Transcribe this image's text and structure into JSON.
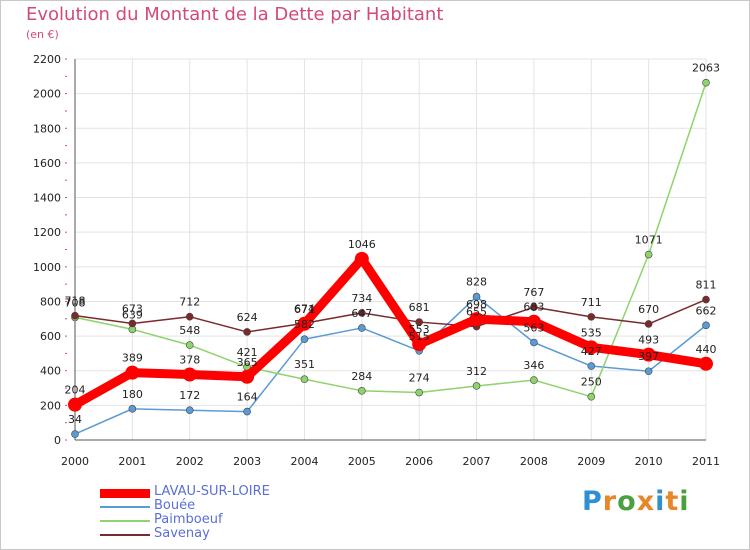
{
  "header": {
    "title": "Evolution du Montant de la Dette par Habitant",
    "subtitle": "(en €)"
  },
  "logo": {
    "letters": [
      "P",
      "r",
      "o",
      "x",
      "i",
      "t",
      "i"
    ],
    "colors": [
      "#2f8fd0",
      "#e8862a",
      "#4aa03f",
      "#e8862a",
      "#2f8fd0",
      "#e8862a",
      "#4aa03f"
    ]
  },
  "chart_data": {
    "type": "line",
    "title": "Evolution du Montant de la Dette par Habitant",
    "subtitle": "(en €)",
    "xlabel": "",
    "ylabel": "",
    "categories": [
      "2000",
      "2001",
      "2002",
      "2003",
      "2004",
      "2005",
      "2006",
      "2007",
      "2008",
      "2009",
      "2010",
      "2011"
    ],
    "ylim": [
      0,
      2200
    ],
    "yticks": [
      0,
      200,
      400,
      600,
      800,
      1000,
      1200,
      1400,
      1600,
      1800,
      2000,
      2200
    ],
    "grid": true,
    "legend": "bottom-left",
    "series": [
      {
        "name": "LAVAU-SUR-LOIRE",
        "color": "#ff0000",
        "values": [
          204,
          389,
          378,
          365,
          671,
          1046,
          553,
          698,
          683,
          535,
          493,
          440
        ],
        "labels": [
          "204",
          "389",
          "378",
          "365",
          "671",
          "1046",
          "553",
          "698",
          "683",
          "535",
          "493",
          "440"
        ],
        "emphasis": true
      },
      {
        "name": "Bouée",
        "color": "#5b9bd5",
        "values": [
          34,
          180,
          172,
          164,
          582,
          647,
          515,
          828,
          563,
          427,
          397,
          662
        ],
        "labels": [
          "34",
          "180",
          "172",
          "164",
          "582",
          "647",
          "515",
          "828",
          "563",
          "427",
          "397",
          "662"
        ]
      },
      {
        "name": "Paimboeuf",
        "color": "#8ed36b",
        "values": [
          708,
          639,
          548,
          421,
          351,
          284,
          274,
          312,
          346,
          250,
          1071,
          2063
        ],
        "labels": [
          "708",
          "639",
          "548",
          "421",
          "351",
          "284",
          "274",
          "312",
          "346",
          "250",
          "1071",
          "2063"
        ]
      },
      {
        "name": "Savenay",
        "color": "#7a2a2a",
        "values": [
          718,
          673,
          712,
          624,
          674,
          734,
          681,
          655,
          767,
          711,
          670,
          811
        ],
        "labels": [
          "718",
          "673",
          "712",
          "624",
          "674",
          "734",
          "681",
          "655",
          "767",
          "711",
          "670",
          "811"
        ]
      }
    ]
  }
}
